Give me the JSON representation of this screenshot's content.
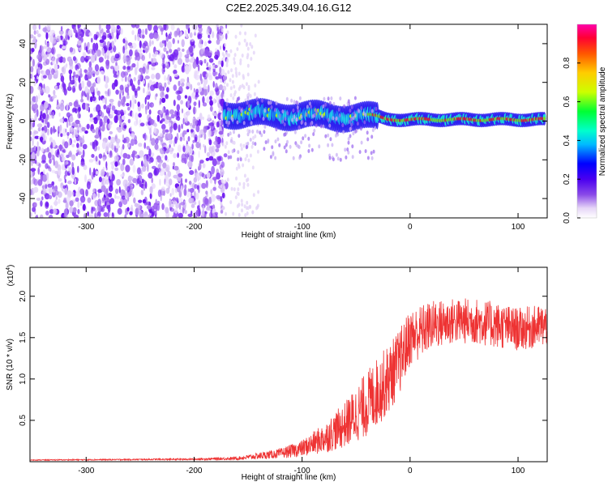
{
  "title": "C2E2.2025.349.04.16.G12",
  "chart_data": [
    {
      "type": "heatmap",
      "xlabel": "Height of straight line (km)",
      "ylabel": "Frequency (Hz)",
      "xlim": [
        -352,
        127
      ],
      "ylim": [
        -50,
        50
      ],
      "xticks": [
        -300,
        -200,
        -100,
        0,
        100
      ],
      "yticks": [
        -40,
        -20,
        0,
        20,
        40
      ],
      "colorbar": {
        "label": "Normalized spectral amplitude",
        "range": [
          0,
          1
        ],
        "ticks": [
          "0.0",
          "0.2",
          "0.4",
          "0.6",
          "0.8"
        ]
      }
    },
    {
      "type": "line",
      "xlabel": "Height of straight line (km)",
      "ylabel": "SNR (10 * v/v)",
      "yscale_label": "(x10",
      "yscale_exp": "4",
      "xlim": [
        -352,
        127
      ],
      "ylim": [
        0,
        2.35
      ],
      "xticks": [
        -300,
        -200,
        -100,
        0,
        100
      ],
      "yticks": [
        "0.5",
        "1.0",
        "1.5",
        "2.0"
      ],
      "series": [
        {
          "name": "SNR",
          "color": "#ee3333",
          "envelope_x": [
            -352,
            -200,
            -160,
            -120,
            -100,
            -80,
            -60,
            -40,
            -30,
            -20,
            -10,
            0,
            20,
            40,
            60,
            80,
            100,
            127
          ],
          "envelope_y": [
            0.02,
            0.03,
            0.04,
            0.1,
            0.16,
            0.28,
            0.45,
            0.7,
            0.85,
            1.0,
            1.2,
            1.5,
            1.65,
            1.7,
            1.7,
            1.65,
            1.6,
            1.65
          ],
          "spread_y": [
            0.005,
            0.01,
            0.02,
            0.06,
            0.1,
            0.18,
            0.28,
            0.4,
            0.42,
            0.42,
            0.4,
            0.35,
            0.3,
            0.28,
            0.28,
            0.28,
            0.26,
            0.26
          ]
        }
      ]
    }
  ]
}
